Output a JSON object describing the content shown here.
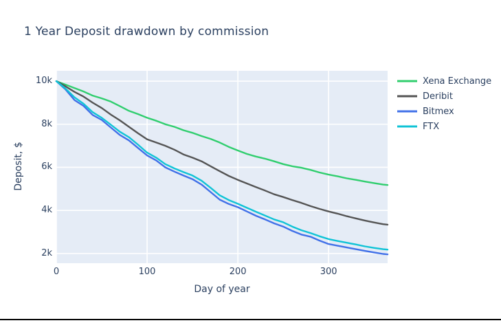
{
  "page": {
    "title": "1 Year Deposit drawdown by commission"
  },
  "colors": {
    "text": "#2a3f5f",
    "plot_background": "#e5ecf6",
    "grid": "#ffffff",
    "page_background": "#ffffff",
    "bottom_border": "#000000"
  },
  "chart_data": {
    "type": "line",
    "title": "1 Year Deposit drawdown by commission",
    "xlabel": "Day of year",
    "ylabel": "Deposit, $",
    "xlim": [
      0,
      365
    ],
    "ylim": [
      1550,
      10480
    ],
    "grid": true,
    "legend_position": "right-top",
    "x_ticks": {
      "values": [
        0,
        100,
        200,
        300
      ],
      "labels": [
        "0",
        "100",
        "200",
        "300"
      ]
    },
    "y_ticks": {
      "values": [
        10000,
        8000,
        6000,
        4000,
        2000
      ],
      "labels": [
        "10k",
        "8k",
        "6k",
        "4k",
        "2k"
      ]
    },
    "x": [
      0,
      10,
      20,
      30,
      40,
      50,
      60,
      70,
      80,
      90,
      100,
      110,
      120,
      130,
      140,
      150,
      160,
      170,
      180,
      190,
      200,
      210,
      220,
      230,
      240,
      250,
      260,
      270,
      280,
      290,
      300,
      310,
      320,
      330,
      340,
      350,
      360,
      365
    ],
    "series": [
      {
        "name": "Xena Exchange",
        "color": "#30ce6e",
        "values": [
          10000,
          9840,
          9680,
          9520,
          9330,
          9200,
          9050,
          8840,
          8620,
          8470,
          8300,
          8160,
          8000,
          7880,
          7720,
          7600,
          7450,
          7320,
          7150,
          6950,
          6780,
          6620,
          6500,
          6400,
          6280,
          6150,
          6050,
          5980,
          5880,
          5760,
          5660,
          5580,
          5490,
          5420,
          5340,
          5270,
          5200,
          5180
        ]
      },
      {
        "name": "Deribit",
        "color": "#545454",
        "values": [
          10000,
          9760,
          9500,
          9280,
          9000,
          8750,
          8450,
          8180,
          7880,
          7580,
          7300,
          7150,
          7000,
          6820,
          6600,
          6450,
          6280,
          6050,
          5820,
          5600,
          5420,
          5250,
          5080,
          4920,
          4750,
          4620,
          4480,
          4350,
          4200,
          4070,
          3950,
          3850,
          3730,
          3630,
          3530,
          3440,
          3360,
          3340
        ]
      },
      {
        "name": "Bitmex",
        "color": "#4070e8",
        "values": [
          10000,
          9620,
          9120,
          8850,
          8430,
          8200,
          7850,
          7500,
          7250,
          6900,
          6550,
          6320,
          6000,
          5800,
          5620,
          5450,
          5200,
          4850,
          4500,
          4300,
          4150,
          3950,
          3750,
          3580,
          3400,
          3250,
          3050,
          2880,
          2780,
          2600,
          2440,
          2360,
          2280,
          2200,
          2120,
          2050,
          1980,
          1960
        ]
      },
      {
        "name": "FTX",
        "color": "#0fc3d6",
        "values": [
          10000,
          9660,
          9250,
          8950,
          8560,
          8300,
          7980,
          7650,
          7400,
          7050,
          6680,
          6450,
          6150,
          5950,
          5780,
          5620,
          5380,
          5050,
          4700,
          4480,
          4310,
          4120,
          3940,
          3760,
          3580,
          3450,
          3250,
          3080,
          2950,
          2800,
          2670,
          2580,
          2500,
          2420,
          2330,
          2260,
          2200,
          2180
        ]
      }
    ]
  }
}
